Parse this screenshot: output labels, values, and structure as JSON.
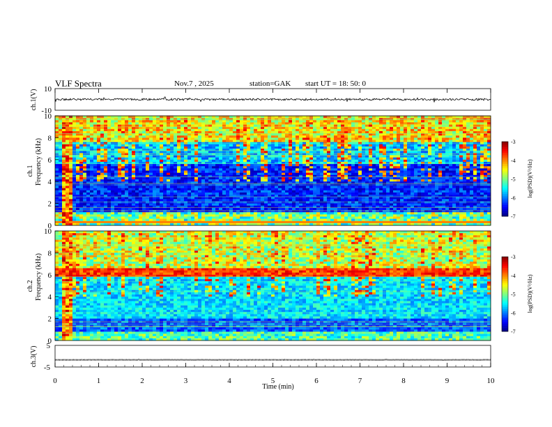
{
  "header": {
    "title": "VLF  Spectra",
    "date": "Nov.7   , 2025",
    "station": "station=GAK",
    "start_ut": "start  UT  =    18: 50: 0"
  },
  "chart_data": [
    {
      "type": "line",
      "id": "ch1-waveform",
      "ylabel": "ch.1(V)",
      "ylim": [
        -10,
        10
      ],
      "yticks": [
        "10",
        "-10"
      ],
      "baseline": 0
    },
    {
      "type": "heatmap",
      "id": "ch1-spectrogram",
      "ylabel": "ch.1\nFrequency  (kHz)",
      "ylabel_line1": "ch.1",
      "ylabel_line2": "Frequency  (kHz)",
      "ylim": [
        0,
        10
      ],
      "yticks": [
        "0",
        "2",
        "4",
        "6",
        "8",
        "10"
      ],
      "colorbar": {
        "label": "log(PSD)(V²/Hz)",
        "range": [
          -7,
          -3
        ],
        "ticks": [
          "-3",
          "-4",
          "-5",
          "-6",
          "-7"
        ]
      }
    },
    {
      "type": "heatmap",
      "id": "ch2-spectrogram",
      "ylabel": "ch.2\nFrequency  (kHz)",
      "ylabel_line1": "ch.2",
      "ylabel_line2": "Frequency  (kHz)",
      "ylim": [
        0,
        10
      ],
      "yticks": [
        "0",
        "2",
        "4",
        "6",
        "8",
        "10"
      ],
      "colorbar": {
        "label": "log(PSD)(V²/Hz)",
        "range": [
          -7,
          -3
        ],
        "ticks": [
          "-3",
          "-4",
          "-5",
          "-6",
          "-7"
        ]
      }
    },
    {
      "type": "line",
      "id": "ch3-waveform",
      "ylabel": "ch.3(V)",
      "ylim": [
        -5,
        5
      ],
      "yticks": [
        "5",
        "-5"
      ],
      "baseline": -1.7
    }
  ],
  "xaxis": {
    "label": "Time  (min)",
    "xlim": [
      0,
      10
    ],
    "ticks": [
      "0",
      "1",
      "2",
      "3",
      "4",
      "5",
      "6",
      "7",
      "8",
      "9",
      "10"
    ]
  }
}
